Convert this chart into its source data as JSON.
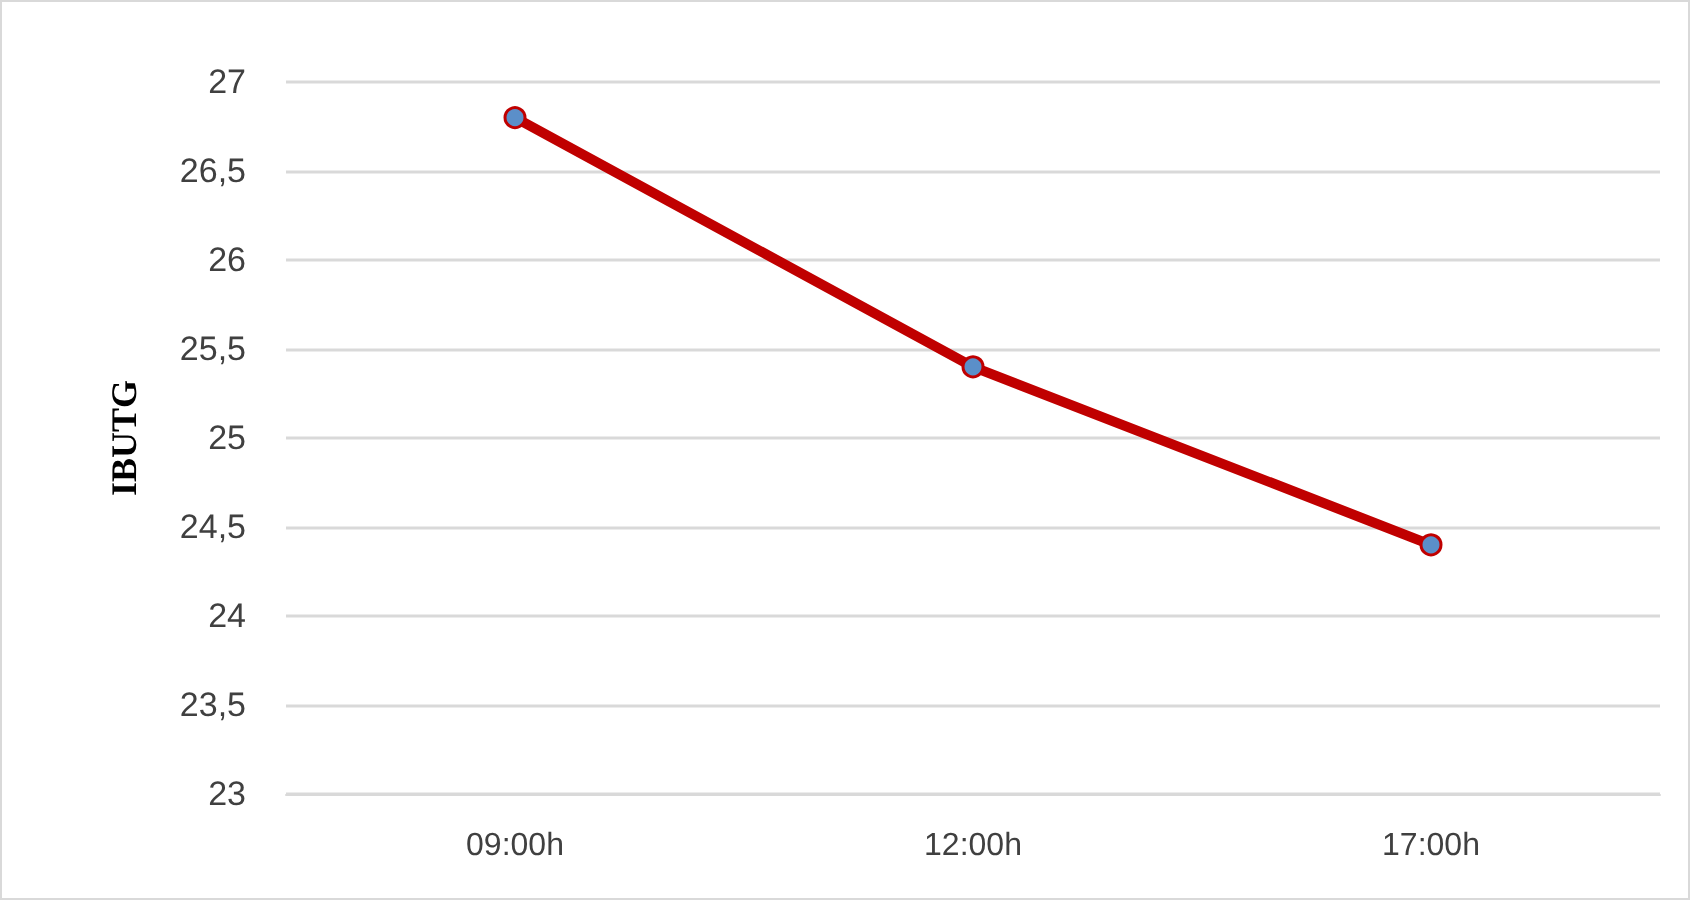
{
  "chart_data": {
    "type": "line",
    "ylabel": "IBUTG",
    "categories": [
      "09:00h",
      "12:00h",
      "17:00h"
    ],
    "series": [
      {
        "color": "#c00000",
        "values": [
          26.8,
          25.4,
          24.4
        ]
      }
    ],
    "ylim": [
      23,
      27
    ],
    "yticks": [
      23,
      {
        "value": 23.5,
        "label": "23,5"
      },
      24,
      {
        "value": 24.5,
        "label": "24,5"
      },
      25,
      {
        "value": 25.5,
        "label": "25,5"
      },
      26,
      {
        "value": 26.5,
        "label": "26,5"
      },
      27
    ],
    "grid": "y",
    "marker": "circle",
    "line_style": "solid"
  }
}
